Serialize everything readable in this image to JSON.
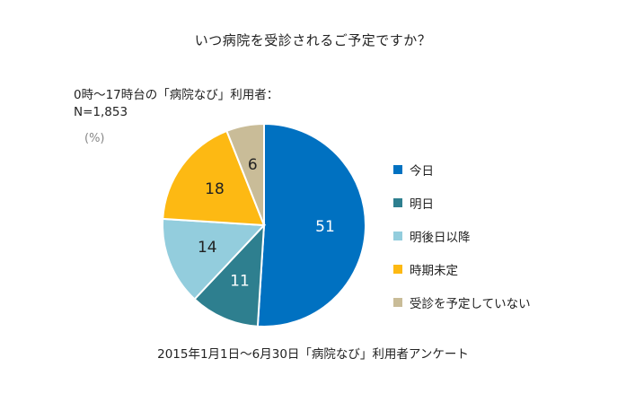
{
  "chart_data": {
    "type": "pie",
    "title": "いつ病院を受診されるご予定ですか？",
    "subtitle_lines": [
      "0時～17時台の「病院なび」利用者：",
      "N=1,853"
    ],
    "unit": "(%)",
    "categories": [
      "今日",
      "明日",
      "明後日以降",
      "時期未定",
      "受診を予定していない"
    ],
    "values": [
      51,
      11,
      14,
      18,
      6
    ],
    "colors": [
      "#0071c1",
      "#2e7f8f",
      "#93cddd",
      "#fdb913",
      "#c9bc98"
    ],
    "label_colors": [
      "#ffffff",
      "#ffffff",
      "#222222",
      "#222222",
      "#222222"
    ],
    "legend_position": "right",
    "start_angle_deg": 0,
    "direction": "clockwise",
    "source_note": "2015年1月1日～6月30日「病院なび」利用者アンケート"
  }
}
